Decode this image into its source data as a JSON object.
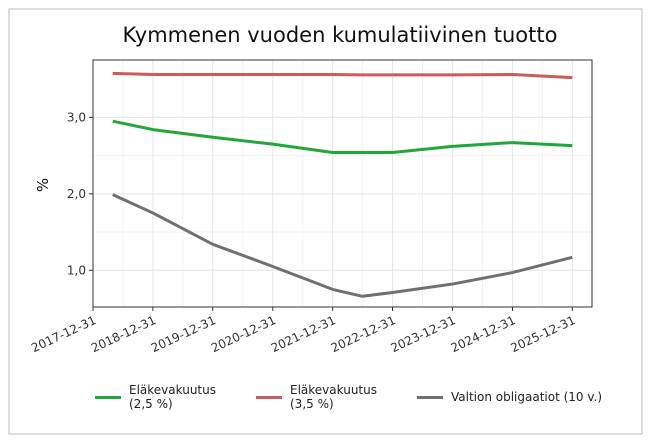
{
  "chart_data": {
    "type": "line",
    "title": "Kymmenen vuoden kumulatiivinen tuotto",
    "ylabel": "%",
    "x": [
      "2018-04-30",
      "2018-12-31",
      "2019-12-31",
      "2020-12-31",
      "2021-12-31",
      "2022-06-30",
      "2022-12-31",
      "2023-12-31",
      "2024-12-31",
      "2025-12-31"
    ],
    "series": [
      {
        "name": "Eläkevakuutus (2,5 %)",
        "color": "#22a83a",
        "values": [
          2.95,
          2.84,
          2.74,
          2.65,
          2.54,
          2.54,
          2.54,
          2.62,
          2.67,
          2.63
        ]
      },
      {
        "name": "Eläkevakuutus (3,5 %)",
        "color": "#cf5b57",
        "values": [
          3.575,
          3.56,
          3.56,
          3.56,
          3.56,
          3.555,
          3.555,
          3.555,
          3.56,
          3.52
        ]
      },
      {
        "name": "Valtion obligaatiot (10 v.)",
        "color": "#707070",
        "values": [
          1.99,
          1.75,
          1.34,
          1.05,
          0.75,
          0.66,
          0.71,
          0.82,
          0.97,
          1.17
        ]
      }
    ],
    "xlim": [
      "2017-12-31",
      "2026-04-30"
    ],
    "xticks": [
      "2017-12-31",
      "2018-12-31",
      "2019-12-31",
      "2020-12-31",
      "2021-12-31",
      "2022-12-31",
      "2023-12-31",
      "2024-12-31",
      "2025-12-31"
    ],
    "ylim": [
      0.52,
      3.75
    ],
    "yticks": [
      {
        "value": 1,
        "label": "1,0"
      },
      {
        "value": 2,
        "label": "2,0"
      },
      {
        "value": 3,
        "label": "3,0"
      }
    ],
    "grid": true,
    "legend": "bottom"
  }
}
